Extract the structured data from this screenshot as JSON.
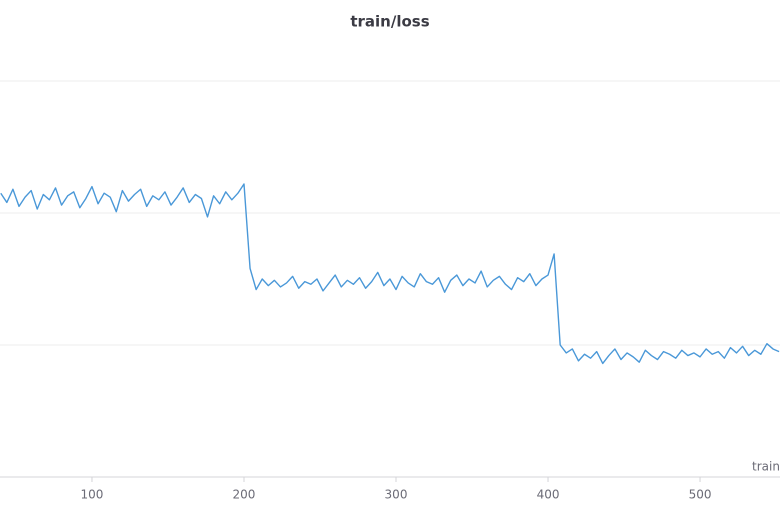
{
  "chart_data": {
    "type": "line",
    "title": "train/loss",
    "x_label": "train",
    "x": [
      40,
      44,
      48,
      52,
      56,
      60,
      64,
      68,
      72,
      76,
      80,
      84,
      88,
      92,
      96,
      100,
      104,
      108,
      112,
      116,
      120,
      124,
      128,
      132,
      136,
      140,
      144,
      148,
      152,
      156,
      160,
      164,
      168,
      172,
      176,
      180,
      184,
      188,
      192,
      196,
      200,
      204,
      208,
      212,
      216,
      220,
      224,
      228,
      232,
      236,
      240,
      244,
      248,
      252,
      256,
      260,
      264,
      268,
      272,
      276,
      280,
      284,
      288,
      292,
      296,
      300,
      304,
      308,
      312,
      316,
      320,
      324,
      328,
      332,
      336,
      340,
      344,
      348,
      352,
      356,
      360,
      364,
      368,
      372,
      376,
      380,
      384,
      388,
      392,
      396,
      400,
      404,
      408,
      412,
      416,
      420,
      424,
      428,
      432,
      436,
      440,
      444,
      448,
      452,
      456,
      460,
      464,
      468,
      472,
      476,
      480,
      484,
      488,
      492,
      496,
      500,
      504,
      508,
      512,
      516,
      520,
      524,
      528,
      532,
      536,
      540,
      544,
      548,
      552
    ],
    "series": [
      {
        "name": "train/loss",
        "color": "#4a98d8",
        "values": [
          2.15,
          2.08,
          2.18,
          2.05,
          2.12,
          2.17,
          2.03,
          2.14,
          2.1,
          2.19,
          2.06,
          2.13,
          2.16,
          2.04,
          2.11,
          2.2,
          2.07,
          2.15,
          2.12,
          2.01,
          2.17,
          2.09,
          2.14,
          2.18,
          2.05,
          2.13,
          2.1,
          2.16,
          2.06,
          2.12,
          2.19,
          2.08,
          2.14,
          2.11,
          1.97,
          2.13,
          2.07,
          2.16,
          2.1,
          2.15,
          2.22,
          1.58,
          1.42,
          1.5,
          1.45,
          1.49,
          1.44,
          1.47,
          1.52,
          1.43,
          1.48,
          1.46,
          1.5,
          1.41,
          1.47,
          1.53,
          1.44,
          1.49,
          1.46,
          1.51,
          1.43,
          1.48,
          1.55,
          1.45,
          1.5,
          1.42,
          1.52,
          1.47,
          1.44,
          1.54,
          1.48,
          1.46,
          1.51,
          1.4,
          1.49,
          1.53,
          1.45,
          1.5,
          1.47,
          1.56,
          1.44,
          1.49,
          1.52,
          1.46,
          1.42,
          1.51,
          1.48,
          1.54,
          1.45,
          1.5,
          1.53,
          1.69,
          1.0,
          0.94,
          0.97,
          0.88,
          0.93,
          0.9,
          0.95,
          0.86,
          0.92,
          0.97,
          0.89,
          0.94,
          0.91,
          0.87,
          0.96,
          0.92,
          0.89,
          0.95,
          0.93,
          0.9,
          0.96,
          0.92,
          0.94,
          0.91,
          0.97,
          0.93,
          0.95,
          0.9,
          0.98,
          0.94,
          0.99,
          0.92,
          0.96,
          0.93,
          1.01,
          0.97,
          0.95
        ]
      }
    ],
    "xlim": [
      39.5,
      552.6
    ],
    "xticks": [
      100,
      200,
      300,
      400,
      500
    ],
    "ylim": [
      0,
      3
    ],
    "ygrid": [
      1,
      2,
      3
    ],
    "grid": true
  }
}
